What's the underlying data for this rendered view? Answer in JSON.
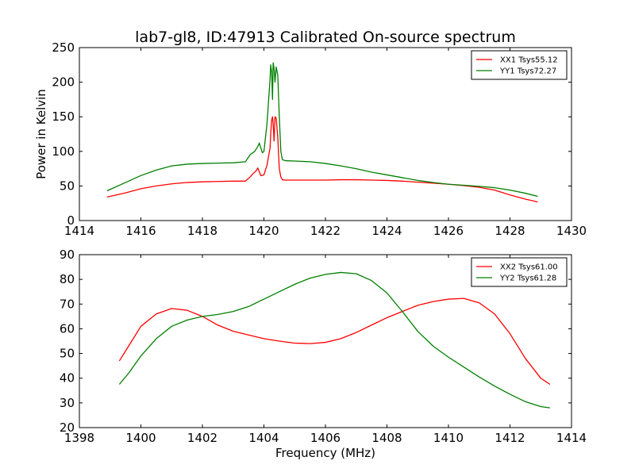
{
  "figure": {
    "title": "lab7-gl8, ID:47913 Calibrated On-source spectrum"
  },
  "chart_data": [
    {
      "type": "line",
      "title": "lab7-gl8, ID:47913 Calibrated On-source spectrum",
      "xlabel": "",
      "ylabel": "Power in Kelvin",
      "xlim": [
        1414,
        1430
      ],
      "ylim": [
        0,
        250
      ],
      "xticks": [
        1414,
        1416,
        1418,
        1420,
        1422,
        1424,
        1426,
        1428,
        1430
      ],
      "yticks": [
        0,
        50,
        100,
        150,
        200,
        250
      ],
      "grid": false,
      "legend_position": "top-right",
      "series": [
        {
          "name": "XX1 Tsys55.12",
          "color": "#ff0000",
          "x": [
            1414.9,
            1415.5,
            1416.0,
            1416.5,
            1417.0,
            1417.5,
            1418.0,
            1418.5,
            1419.0,
            1419.4,
            1419.55,
            1419.65,
            1419.75,
            1419.8,
            1419.9,
            1420.0,
            1420.1,
            1420.2,
            1420.22,
            1420.25,
            1420.28,
            1420.3,
            1420.33,
            1420.36,
            1420.4,
            1420.45,
            1420.5,
            1420.55,
            1420.6,
            1420.7,
            1421.0,
            1421.5,
            1422.0,
            1422.5,
            1423.0,
            1423.5,
            1424.0,
            1424.5,
            1425.0,
            1425.5,
            1426.0,
            1426.5,
            1427.0,
            1427.5,
            1428.0,
            1428.5,
            1428.9
          ],
          "y": [
            34,
            40,
            46,
            50,
            53,
            55,
            56,
            56.5,
            57,
            57,
            63,
            68,
            72,
            76,
            65,
            66,
            80,
            105,
            125,
            145,
            150,
            140,
            115,
            150,
            148,
            120,
            75,
            63,
            59,
            58.5,
            58.5,
            58.5,
            58.5,
            59,
            59,
            58.5,
            58,
            57,
            55.5,
            54,
            52.5,
            50.5,
            48,
            44,
            37,
            31,
            27
          ]
        },
        {
          "name": "YY1 Tsys72.27",
          "color": "#008000",
          "x": [
            1414.9,
            1415.5,
            1416.0,
            1416.5,
            1417.0,
            1417.5,
            1418.0,
            1418.5,
            1419.0,
            1419.4,
            1419.55,
            1419.7,
            1419.8,
            1419.85,
            1419.95,
            1420.0,
            1420.1,
            1420.2,
            1420.22,
            1420.25,
            1420.28,
            1420.3,
            1420.33,
            1420.36,
            1420.4,
            1420.45,
            1420.5,
            1420.55,
            1420.6,
            1420.7,
            1421.0,
            1421.5,
            1422.0,
            1422.5,
            1423.0,
            1423.5,
            1424.0,
            1424.5,
            1425.0,
            1425.5,
            1426.0,
            1426.5,
            1427.0,
            1427.5,
            1428.0,
            1428.5,
            1428.9
          ],
          "y": [
            43,
            55,
            65,
            73,
            79,
            81.5,
            82.5,
            83,
            83.5,
            85,
            95,
            100,
            107,
            112,
            98,
            100,
            140,
            205,
            225,
            215,
            175,
            228,
            220,
            200,
            222,
            210,
            150,
            100,
            88,
            86.5,
            86,
            85,
            82.5,
            79,
            75,
            70,
            66,
            62,
            58,
            55,
            52.5,
            51,
            49.5,
            47.5,
            44,
            39.5,
            35
          ]
        }
      ]
    },
    {
      "type": "line",
      "title": "",
      "xlabel": "Frequency (MHz)",
      "ylabel": "",
      "xlim": [
        1398,
        1414
      ],
      "ylim": [
        20,
        90
      ],
      "xticks": [
        1398,
        1400,
        1402,
        1404,
        1406,
        1408,
        1410,
        1412,
        1414
      ],
      "yticks": [
        20,
        30,
        40,
        50,
        60,
        70,
        80,
        90
      ],
      "grid": false,
      "legend_position": "top-right",
      "series": [
        {
          "name": "XX2 Tsys61.00",
          "color": "#ff0000",
          "x": [
            1399.3,
            1399.6,
            1400.0,
            1400.5,
            1401.0,
            1401.5,
            1402.0,
            1402.5,
            1403.0,
            1403.5,
            1404.0,
            1404.5,
            1405.0,
            1405.5,
            1406.0,
            1406.5,
            1407.0,
            1407.5,
            1408.0,
            1408.5,
            1409.0,
            1409.5,
            1410.0,
            1410.5,
            1411.0,
            1411.5,
            1412.0,
            1412.5,
            1413.0,
            1413.3
          ],
          "y": [
            47,
            53,
            61,
            66,
            68.2,
            67.5,
            65,
            61.5,
            59,
            57.5,
            56,
            55,
            54.2,
            54,
            54.5,
            56,
            58.5,
            61.5,
            64.5,
            67,
            69.5,
            71,
            72,
            72.3,
            70.5,
            66,
            58,
            48,
            40,
            37.5
          ]
        },
        {
          "name": "YY2 Tsys61.28",
          "color": "#008000",
          "x": [
            1399.3,
            1399.6,
            1400.0,
            1400.5,
            1401.0,
            1401.5,
            1402.0,
            1402.5,
            1403.0,
            1403.5,
            1404.0,
            1404.5,
            1405.0,
            1405.5,
            1406.0,
            1406.5,
            1407.0,
            1407.5,
            1408.0,
            1408.5,
            1409.0,
            1409.5,
            1410.0,
            1410.5,
            1411.0,
            1411.5,
            1412.0,
            1412.5,
            1413.0,
            1413.3
          ],
          "y": [
            37.5,
            42,
            49,
            56,
            61,
            63.5,
            65,
            65.8,
            67,
            69,
            72,
            75,
            78,
            80.5,
            82,
            82.8,
            82.3,
            79.5,
            74.5,
            67,
            59,
            53,
            48.5,
            44.5,
            40.5,
            36.8,
            33.5,
            30.5,
            28.5,
            28
          ]
        }
      ]
    }
  ]
}
